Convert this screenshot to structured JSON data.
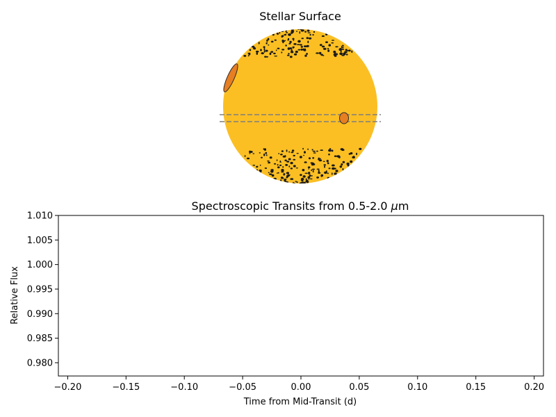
{
  "figure": {
    "colors": {
      "star": "#fbbf24",
      "planet": "#e67e22",
      "starspot": "#1a1a1a",
      "transit_chord": "#7f7f7f"
    }
  },
  "chart_data": [
    {
      "type": "diagram",
      "title": "Stellar Surface",
      "elements": [
        "star disk",
        "starspots near both poles",
        "transiting planet",
        "planet on limb",
        "transit chord"
      ]
    },
    {
      "type": "line",
      "title": "Spectroscopic Transits from 0.5-2.0 $\\mu$m",
      "title_prefix": "Spectroscopic Transits from 0.5-2.0 ",
      "title_mu": "μ",
      "title_suffix": "m",
      "xlabel": "Time from Mid-Transit (d)",
      "ylabel": "Relative Flux",
      "xlim": [
        -0.208,
        0.208
      ],
      "ylim": [
        0.9773,
        1.01
      ],
      "x_ticks": [
        -0.2,
        -0.15,
        -0.1,
        -0.05,
        0.0,
        0.05,
        0.1,
        0.15,
        0.2
      ],
      "x_tick_labels": [
        "−0.20",
        "−0.15",
        "−0.10",
        "−0.05",
        "0.00",
        "0.05",
        "0.10",
        "0.15",
        "0.20"
      ],
      "y_ticks": [
        0.98,
        0.985,
        0.99,
        0.995,
        1.0,
        1.005,
        1.01
      ],
      "y_tick_labels": [
        "0.980",
        "0.985",
        "0.990",
        "0.995",
        "1.000",
        "1.005",
        "1.010"
      ],
      "series": [],
      "grid": false
    }
  ]
}
